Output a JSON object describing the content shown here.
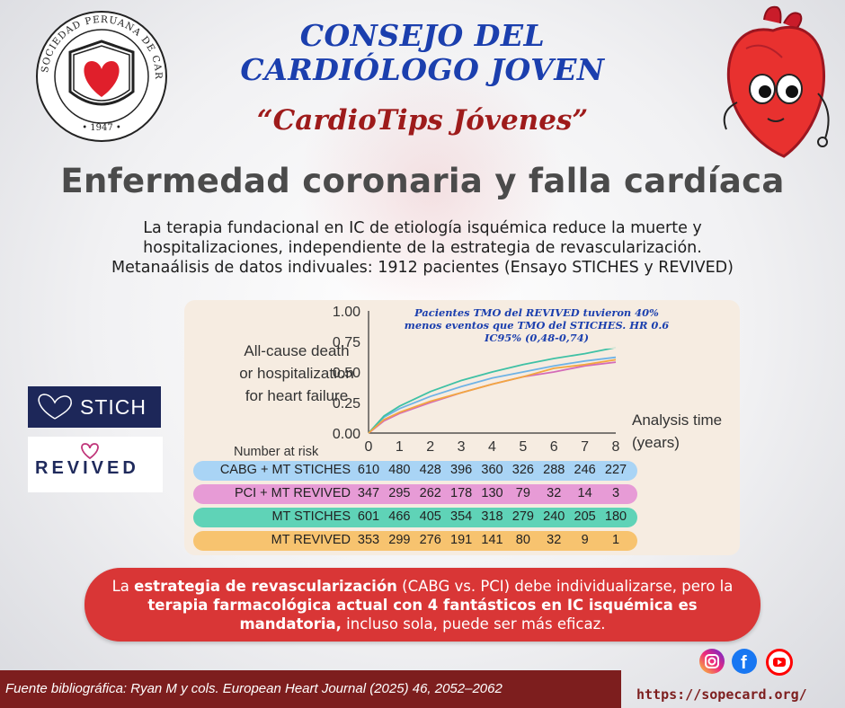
{
  "header": {
    "title_line1": "CONSEJO DEL",
    "title_line2": "CARDIÓLOGO JOVEN",
    "subtitle": "“CardioTips Jóvenes”"
  },
  "seal": {
    "ring_text": "SOCIEDAD PERUANA DE CARDIOLOGIA",
    "year": "• 1947 •"
  },
  "heading": "Enfermedad coronaria y falla cardíaca",
  "intro": {
    "line1": "La terapia fundacional en IC de etiología isquémica reduce la muerte y",
    "line2": "hospitalizaciones, independiente de la estrategia de revascularización.",
    "line3": "Metanaálisis de datos indivuales: 1912 pacientes (Ensayo STICHES y REVIVED)"
  },
  "logos": {
    "stich": "STICH",
    "revived": "REVIVED"
  },
  "chart_data": {
    "type": "line",
    "ylabel_lines": [
      "All-cause death",
      "or hospitalization",
      "for heart failure"
    ],
    "xlabel_lines": [
      "Analysis time",
      "(years)"
    ],
    "ylim": [
      0,
      1
    ],
    "xlim": [
      0,
      8
    ],
    "yticks": [
      "1.00",
      "0.75",
      "0.50",
      "0.25",
      "0.00"
    ],
    "xticks": [
      "0",
      "1",
      "2",
      "3",
      "4",
      "5",
      "6",
      "7",
      "8"
    ],
    "annotation_lines": [
      "Pacientes TMO del REVIVED  tuvieron 40%",
      "menos eventos que TMO del STICHES. HR 0.6",
      "IC95% (0,48-0,74)"
    ],
    "series": [
      {
        "name": "CABG + MT STICHES",
        "color": "#6fb3e6",
        "x": [
          0,
          0.5,
          1,
          2,
          3,
          4,
          5,
          6,
          7,
          8
        ],
        "y": [
          0,
          0.13,
          0.2,
          0.3,
          0.38,
          0.45,
          0.5,
          0.55,
          0.59,
          0.62
        ]
      },
      {
        "name": "PCI + MT REVIVED",
        "color": "#d46bb8",
        "x": [
          0,
          0.5,
          1,
          2,
          3,
          4,
          5,
          6,
          7,
          8
        ],
        "y": [
          0,
          0.1,
          0.16,
          0.25,
          0.33,
          0.4,
          0.46,
          0.5,
          0.55,
          0.58
        ]
      },
      {
        "name": "MT STICHES",
        "color": "#3fc1a5",
        "x": [
          0,
          0.5,
          1,
          2,
          3,
          4,
          5,
          6,
          7,
          8
        ],
        "y": [
          0,
          0.14,
          0.22,
          0.34,
          0.43,
          0.5,
          0.56,
          0.61,
          0.65,
          0.7
        ]
      },
      {
        "name": "MT REVIVED",
        "color": "#f2a640",
        "x": [
          0,
          0.5,
          1,
          2,
          3,
          4,
          5,
          6,
          7,
          8
        ],
        "y": [
          0,
          0.11,
          0.17,
          0.26,
          0.33,
          0.4,
          0.46,
          0.53,
          0.56,
          0.6
        ]
      }
    ]
  },
  "risk_table": {
    "header": "Number at risk",
    "rows": [
      {
        "label": "CABG + MT STICHES",
        "color": "#a9d4f5",
        "values": [
          "610",
          "480",
          "428",
          "396",
          "360",
          "326",
          "288",
          "246",
          "227"
        ]
      },
      {
        "label": "PCI + MT REVIVED",
        "color": "#e79bd6",
        "values": [
          "347",
          "295",
          "262",
          "178",
          "130",
          "79",
          "32",
          "14",
          "3"
        ]
      },
      {
        "label": "MT STICHES",
        "color": "#5fd3b7",
        "values": [
          "601",
          "466",
          "405",
          "354",
          "318",
          "279",
          "240",
          "205",
          "180"
        ]
      },
      {
        "label": "MT REVIVED",
        "color": "#f7c36f",
        "values": [
          "353",
          "299",
          "276",
          "191",
          "141",
          "80",
          "32",
          "9",
          "1"
        ]
      }
    ]
  },
  "callout": {
    "p1": "La ",
    "b1": "estrategia de revascularización",
    "p2": " (CABG vs. PCI) debe individualizarse, pero la ",
    "b2": "terapia farmacológica actual con 4 fantásticos en IC isquémica es mandatoria,",
    "p3": " incluso sola, puede ser más eficaz."
  },
  "footer": {
    "source": "Fuente bibliográfica: Ryan M y cols. European Heart Journal (2025) 46, 2052–2062",
    "url": "https://sopecard.org/"
  },
  "social": [
    {
      "icon": "instagram-icon",
      "color": "#d62976"
    },
    {
      "icon": "facebook-icon",
      "color": "#1877f2"
    },
    {
      "icon": "youtube-icon",
      "color": "#ff0000"
    }
  ]
}
